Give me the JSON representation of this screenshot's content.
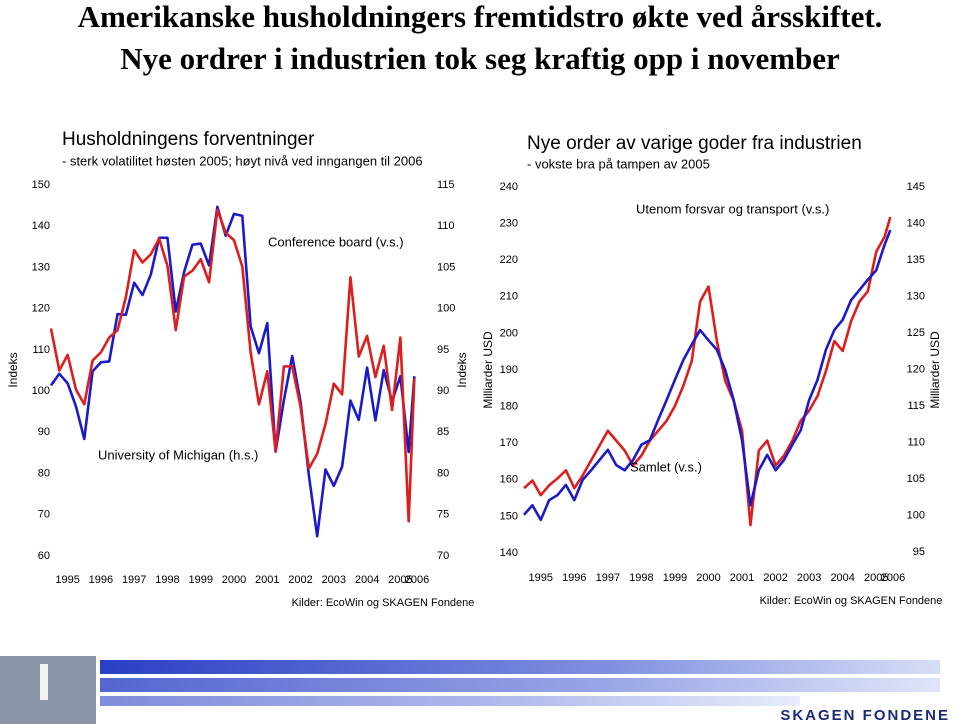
{
  "title_lines": [
    "Amerikanske husholdningers fremtidstro økte ved årsskiftet.",
    "Nye ordrer i industrien tok seg kraftig opp i november"
  ],
  "footer_logo": "SKAGEN FONDENE",
  "chart_data": [
    {
      "type": "line",
      "title": "Husholdningens forventninger",
      "subtitle": "- sterk volatilitet høsten 2005; høyt nivå ved inngangen til 2006",
      "y_label": "Indeks",
      "y2_label": "Indeks",
      "source": "Kilder: EcoWin og SKAGEN Fondene",
      "x": [
        1995,
        1995.25,
        1995.5,
        1995.75,
        1996,
        1996.25,
        1996.5,
        1996.75,
        1997,
        1997.25,
        1997.5,
        1997.75,
        1998,
        1998.25,
        1998.5,
        1998.75,
        1999,
        1999.25,
        1999.5,
        1999.75,
        2000,
        2000.25,
        2000.5,
        2000.75,
        2001,
        2001.25,
        2001.5,
        2001.75,
        2002,
        2002.25,
        2002.5,
        2002.75,
        2003,
        2003.25,
        2003.5,
        2003.75,
        2004,
        2004.25,
        2004.5,
        2004.75,
        2005,
        2005.25,
        2005.5,
        2005.75,
        2005.92
      ],
      "xlim": [
        1995,
        2006
      ],
      "xticks": [
        {
          "value": 1995.5,
          "label": "1995"
        },
        {
          "value": 1996.5,
          "label": "1996"
        },
        {
          "value": 1997.5,
          "label": "1997"
        },
        {
          "value": 1998.5,
          "label": "1998"
        },
        {
          "value": 1999.5,
          "label": "1999"
        },
        {
          "value": 2000.5,
          "label": "2000"
        },
        {
          "value": 2001.5,
          "label": "2001"
        },
        {
          "value": 2002.5,
          "label": "2002"
        },
        {
          "value": 2003.5,
          "label": "2003"
        },
        {
          "value": 2004.5,
          "label": "2004"
        },
        {
          "value": 2005.5,
          "label": "2005"
        },
        2006
      ],
      "ylim": [
        60,
        150
      ],
      "yticks": [
        60,
        70,
        80,
        90,
        100,
        110,
        120,
        130,
        140,
        150
      ],
      "y2lim": [
        70,
        115
      ],
      "y2ticks": [
        70,
        75,
        80,
        85,
        90,
        95,
        100,
        105,
        110,
        115
      ],
      "series": [
        {
          "name": "Conference board (v.s.)",
          "color": "#1a1ac8",
          "axis": "y",
          "values": [
            101.4,
            104.2,
            101.9,
            96.3,
            88.4,
            104.8,
            107.0,
            107.2,
            118.7,
            118.5,
            126.3,
            123.3,
            128.3,
            137.2,
            137.2,
            119.3,
            128.9,
            135.5,
            135.8,
            130.5,
            144.7,
            137.7,
            143.0,
            142.5,
            115.7,
            109.2,
            116.5,
            85.3,
            97.8,
            108.5,
            97.4,
            79.6,
            64.8,
            81.0,
            77.0,
            81.7,
            97.7,
            93.0,
            105.7,
            92.9,
            105.1,
            97.5,
            103.6,
            85.2,
            103.6
          ]
        },
        {
          "name": "University of Michigan (h.s.)",
          "color": "#dc1e1e",
          "axis": "y2",
          "values": [
            97.6,
            92.5,
            94.4,
            90.2,
            88.4,
            93.7,
            94.7,
            96.5,
            97.4,
            101.4,
            107.1,
            105.6,
            106.6,
            108.5,
            105.2,
            97.4,
            103.9,
            104.6,
            106.0,
            103.2,
            112.0,
            109.2,
            108.3,
            105.1,
            94.7,
            88.4,
            92.4,
            82.7,
            93.0,
            93.0,
            88.1,
            80.6,
            82.4,
            86.0,
            90.9,
            89.6,
            103.8,
            94.2,
            96.7,
            91.7,
            95.5,
            87.7,
            96.5,
            74.2,
            91.5
          ]
        }
      ]
    },
    {
      "type": "line",
      "title": "Nye order av varige goder fra industrien",
      "subtitle": "- vokste bra på tampen av 2005",
      "y_label": "Milliarder USD",
      "y2_label": "Milliarder USD",
      "source": "Kilder: EcoWin og SKAGEN Fondene",
      "x": [
        1995,
        1995.25,
        1995.5,
        1995.75,
        1996,
        1996.25,
        1996.5,
        1996.75,
        1997,
        1997.25,
        1997.5,
        1997.75,
        1998,
        1998.25,
        1998.5,
        1998.75,
        1999,
        1999.25,
        1999.5,
        1999.75,
        2000,
        2000.25,
        2000.5,
        2000.75,
        2001,
        2001.25,
        2001.5,
        2001.75,
        2002,
        2002.25,
        2002.5,
        2002.75,
        2003,
        2003.25,
        2003.5,
        2003.75,
        2004,
        2004.25,
        2004.5,
        2004.75,
        2005,
        2005.25,
        2005.5,
        2005.75,
        2005.92
      ],
      "xlim": [
        1995,
        2006
      ],
      "xticks": [
        {
          "value": 1995.5,
          "label": "1995"
        },
        {
          "value": 1996.5,
          "label": "1996"
        },
        {
          "value": 1997.5,
          "label": "1997"
        },
        {
          "value": 1998.5,
          "label": "1998"
        },
        {
          "value": 1999.5,
          "label": "1999"
        },
        {
          "value": 2000.5,
          "label": "2000"
        },
        {
          "value": 2001.5,
          "label": "2001"
        },
        {
          "value": 2002.5,
          "label": "2002"
        },
        {
          "value": 2003.5,
          "label": "2003"
        },
        {
          "value": 2004.5,
          "label": "2004"
        },
        {
          "value": 2005.5,
          "label": "2005"
        },
        2006
      ],
      "ylim": [
        140,
        240
      ],
      "yticks": [
        140,
        150,
        160,
        170,
        180,
        190,
        200,
        210,
        220,
        230,
        240
      ],
      "y2lim": [
        95,
        145
      ],
      "y2ticks": [
        95,
        100,
        105,
        110,
        115,
        120,
        125,
        130,
        135,
        140,
        145
      ],
      "series": [
        {
          "name": "Samlet (v.s.)",
          "color": "#dc1e1e",
          "axis": "y",
          "values": [
            157.7,
            159.8,
            155.8,
            158.5,
            160.4,
            162.6,
            157.7,
            161.2,
            165.3,
            169.3,
            173.4,
            170.7,
            168.0,
            163.9,
            166.6,
            170.7,
            173.4,
            176.1,
            180.2,
            185.7,
            192.4,
            208.7,
            212.8,
            197.9,
            187.0,
            181.6,
            173.4,
            147.6,
            168.0,
            170.7,
            163.9,
            166.6,
            170.7,
            176.1,
            178.9,
            182.9,
            189.7,
            197.9,
            195.2,
            203.3,
            208.7,
            211.5,
            222.3,
            226.4,
            231.8
          ]
        },
        {
          "name": "Utenom forsvar og transport (v.s.)",
          "color": "#1a1ac8",
          "axis": "y2",
          "values": [
            100.1,
            101.4,
            99.4,
            102.1,
            102.8,
            104.2,
            102.1,
            104.9,
            106.2,
            107.6,
            109.0,
            106.9,
            106.2,
            107.6,
            109.7,
            110.3,
            113.1,
            115.8,
            118.6,
            121.3,
            123.4,
            125.4,
            124.0,
            122.7,
            119.9,
            115.8,
            110.3,
            101.4,
            106.2,
            108.3,
            106.2,
            107.6,
            109.7,
            111.7,
            115.8,
            118.6,
            122.7,
            125.4,
            126.8,
            129.5,
            130.9,
            132.3,
            133.6,
            137.1,
            139.1
          ]
        }
      ]
    }
  ]
}
